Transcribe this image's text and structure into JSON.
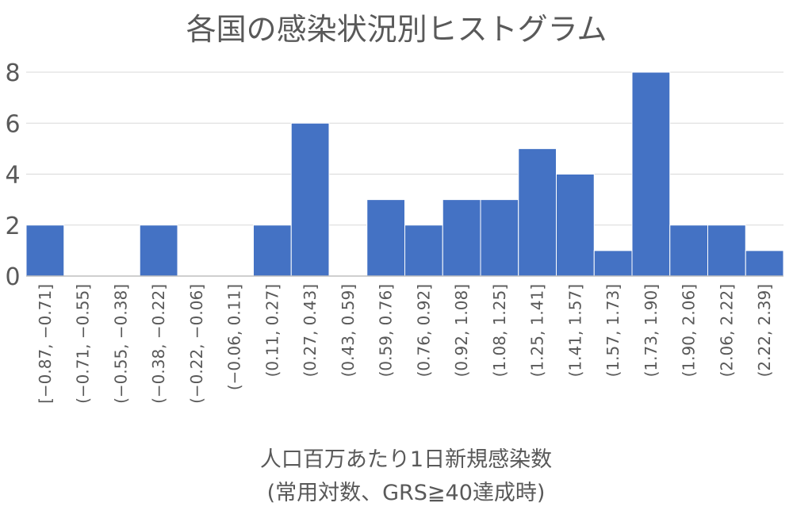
{
  "chart_data": {
    "type": "bar",
    "title": "各国の感染状況別ヒストグラム",
    "xlabel_lines": [
      "人口百万あたり1日新規感染数",
      "(常用対数、GRS≧40達成時)"
    ],
    "ylabel": "",
    "ylim": [
      0,
      8
    ],
    "yticks": [
      "0",
      "2",
      "4",
      "6",
      "8"
    ],
    "grid": true,
    "legend": "none",
    "categories": [
      "[−0.87, −0.71]",
      "(−0.71, −0.55]",
      "(−0.55, −0.38]",
      "(−0.38, −0.22]",
      "(−0.22, −0.06]",
      "(−0.06, 0.11]",
      "(0.11, 0.27]",
      "(0.27, 0.43]",
      "(0.43, 0.59]",
      "(0.59, 0.76]",
      "(0.76, 0.92]",
      "(0.92, 1.08]",
      "(1.08, 1.25]",
      "(1.25, 1.41]",
      "(1.41, 1.57]",
      "(1.57, 1.73]",
      "(1.73, 1.90]",
      "(1.90, 2.06]",
      "(2.06, 2.22]",
      "(2.22, 2.39]"
    ],
    "values": [
      2,
      0,
      0,
      2,
      0,
      0,
      2,
      6,
      0,
      3,
      2,
      3,
      3,
      5,
      4,
      1,
      8,
      2,
      2,
      1
    ],
    "colors": {
      "bar": "#4472C4",
      "bar_edge": "#ffffff",
      "grid": "#D9D9D9",
      "axis": "#BFBFBF",
      "text": "#595959"
    }
  }
}
